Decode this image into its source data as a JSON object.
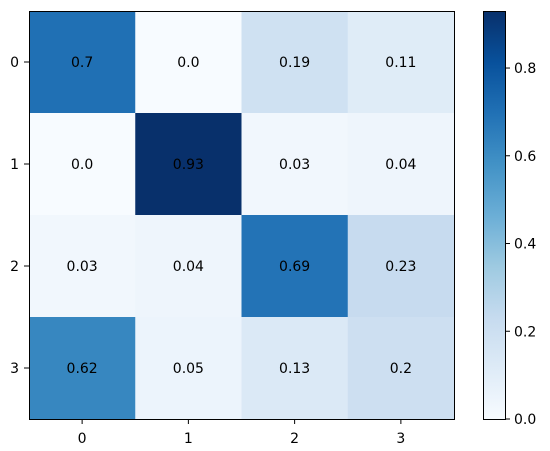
{
  "chart_data": {
    "type": "heatmap",
    "title": "",
    "xlabel": "",
    "ylabel": "",
    "x_categories": [
      "0",
      "1",
      "2",
      "3"
    ],
    "y_categories": [
      "0",
      "1",
      "2",
      "3"
    ],
    "values": [
      [
        0.7,
        0.0,
        0.19,
        0.11
      ],
      [
        0.0,
        0.93,
        0.03,
        0.04
      ],
      [
        0.03,
        0.04,
        0.69,
        0.23
      ],
      [
        0.62,
        0.05,
        0.13,
        0.2
      ]
    ],
    "cell_labels": [
      [
        "0.7",
        "0.0",
        "0.19",
        "0.11"
      ],
      [
        "0.0",
        "0.93",
        "0.03",
        "0.04"
      ],
      [
        "0.03",
        "0.04",
        "0.69",
        "0.23"
      ],
      [
        "0.62",
        "0.05",
        "0.13",
        "0.2"
      ]
    ],
    "colormap": "Blues",
    "colorbar": {
      "range": [
        0.0,
        0.93
      ],
      "ticks": [
        0.0,
        0.2,
        0.4,
        0.6,
        0.8
      ],
      "tick_labels": [
        "0.0",
        "0.2",
        "0.4",
        "0.6",
        "0.8"
      ]
    },
    "grid": false
  }
}
